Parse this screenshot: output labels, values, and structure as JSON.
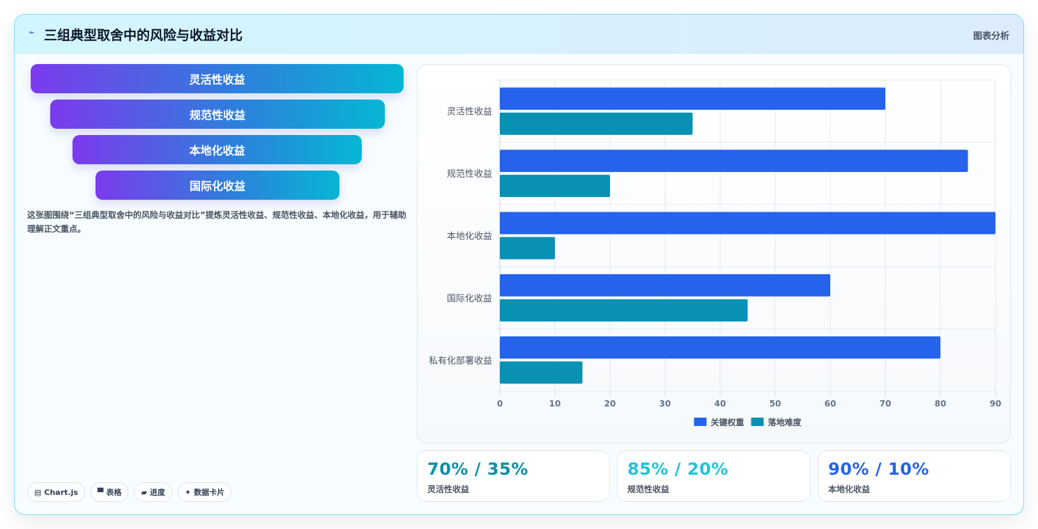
{
  "header": {
    "icon": "lightning-icon",
    "icon_glyph": "⌁",
    "title": "三组典型取舍中的风险与收益对比",
    "right_label": "图表分析"
  },
  "funnel": {
    "items": [
      {
        "label": "灵活性收益"
      },
      {
        "label": "规范性收益"
      },
      {
        "label": "本地化收益"
      },
      {
        "label": "国际化收益"
      }
    ],
    "colors": {
      "start": "#7c3aed",
      "end": "#06b6d4"
    }
  },
  "description": "这张图围绕“三组典型取舍中的风险与收益对比”提炼灵活性收益、规范性收益、本地化收益，用于辅助理解正文重点。",
  "chips": [
    {
      "icon": "chart-icon",
      "glyph": "▤",
      "label": "Chart.js"
    },
    {
      "icon": "table-icon",
      "glyph": "▀",
      "label": "表格"
    },
    {
      "icon": "progress-icon",
      "glyph": "▰",
      "label": "进度"
    },
    {
      "icon": "sparkle-icon",
      "glyph": "✦",
      "label": "数据卡片"
    }
  ],
  "chart_data": {
    "type": "bar",
    "orientation": "horizontal",
    "categories": [
      "灵活性收益",
      "规范性收益",
      "本地化收益",
      "国际化收益",
      "私有化部署收益"
    ],
    "series": [
      {
        "name": "关键权重",
        "values": [
          70,
          85,
          90,
          60,
          80
        ],
        "color": "#2563eb"
      },
      {
        "name": "落地难度",
        "values": [
          35,
          20,
          10,
          45,
          15
        ],
        "color": "#0891b2"
      }
    ],
    "xlim": [
      0,
      90
    ],
    "xticks": [
      0,
      10,
      20,
      30,
      40,
      50,
      60,
      70,
      80,
      90
    ],
    "grid": true,
    "legend": "bottom"
  },
  "stats": [
    {
      "value": "70% / 35%",
      "label": "灵活性收益",
      "color": "#0e8fa6"
    },
    {
      "value": "85% / 20%",
      "label": "规范性收益",
      "color": "#22c3da"
    },
    {
      "value": "90% / 10%",
      "label": "本地化收益",
      "color": "#2563eb"
    }
  ]
}
